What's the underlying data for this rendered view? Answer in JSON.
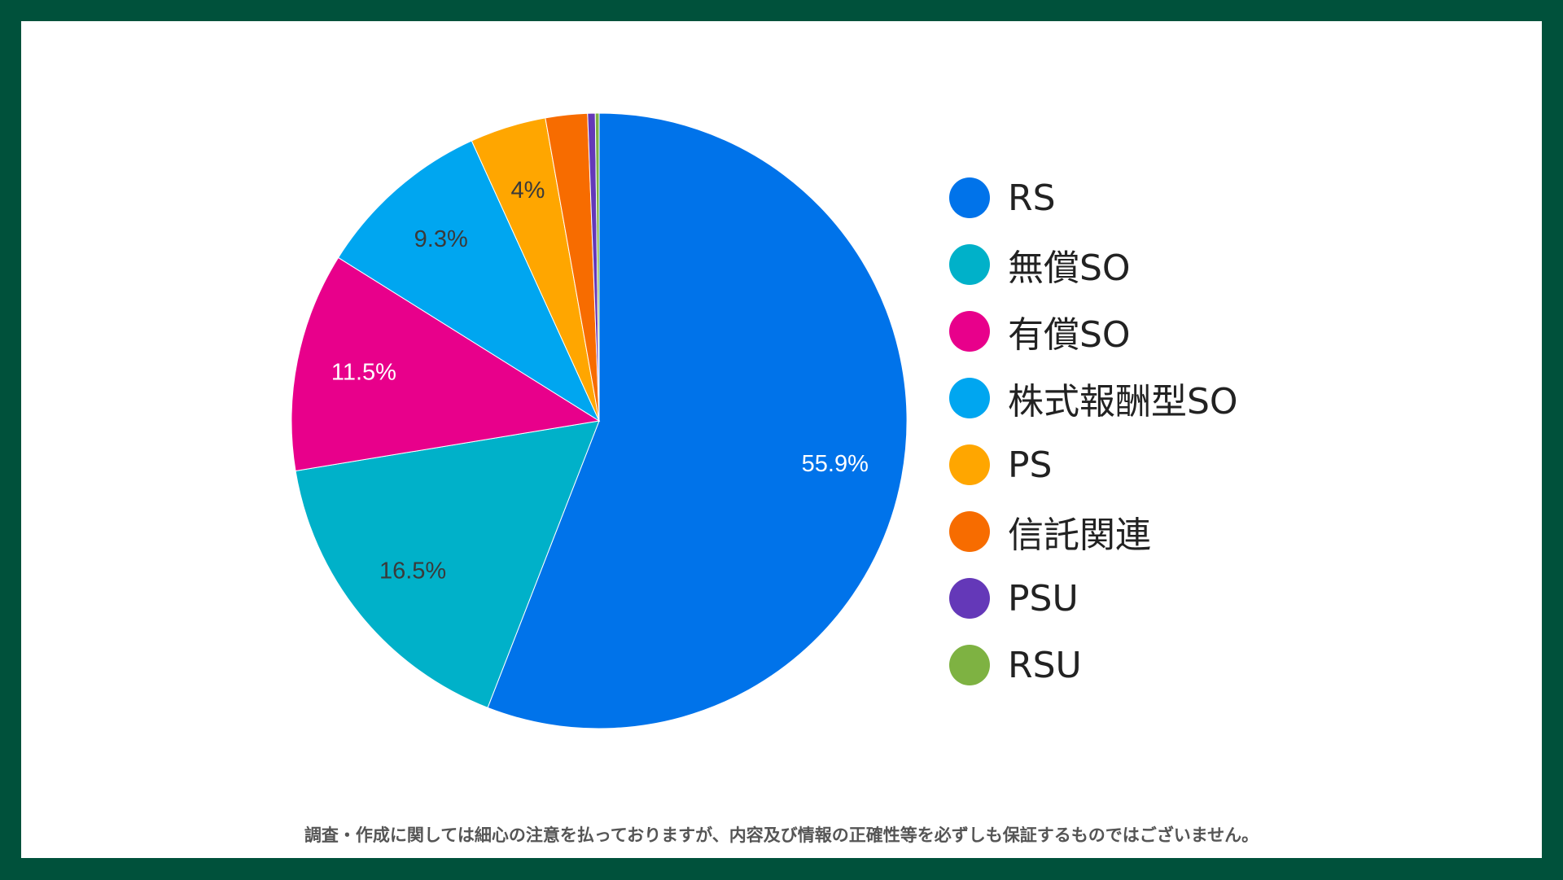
{
  "chart_data": {
    "type": "pie",
    "title": "",
    "legend_position": "right",
    "categories": [
      "RS",
      "無償SO",
      "有償SO",
      "株式報酬型SO",
      "PS",
      "信託関連",
      "PSU",
      "RSU"
    ],
    "values": [
      55.9,
      16.5,
      11.5,
      9.3,
      4.0,
      2.2,
      0.4,
      0.2
    ],
    "data_labels": [
      "55.9%",
      "16.5%",
      "11.5%",
      "9.3%",
      "4%",
      "",
      "",
      ""
    ],
    "colors": [
      "#0073ea",
      "#00b1c9",
      "#e8008b",
      "#00a6f0",
      "#ffa600",
      "#f76c00",
      "#6438b8",
      "#7eb242"
    ],
    "label_colors": [
      "#ffffff",
      "#3a3a3a",
      "#ffffff",
      "#3a3a3a",
      "#3a3a3a",
      "#ffffff",
      "#ffffff",
      "#ffffff"
    ]
  },
  "footer": {
    "disclaimer": "調査・作成に関しては細心の注意を払っておりますが、内容及び情報の正確性等を必ずしも保証するものではございません。"
  }
}
